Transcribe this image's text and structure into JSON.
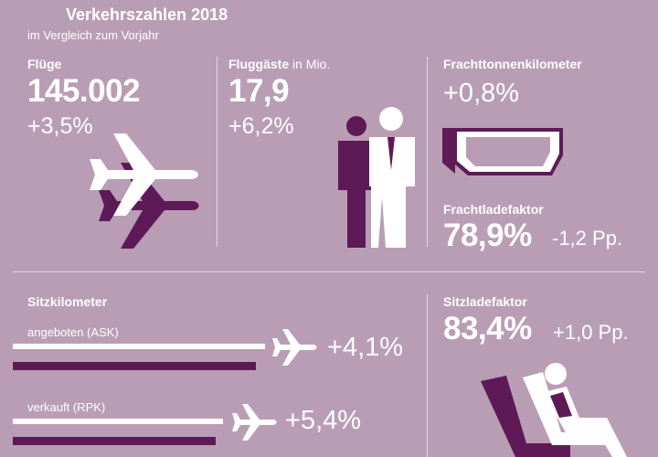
{
  "header": {
    "title": "Verkehrszahlen 2018",
    "subtitle": "im Vergleich zum Vorjahr"
  },
  "fluege": {
    "label": "Flüge",
    "value": "145.002",
    "change": "+3,5%",
    "icon": "airplane-icon"
  },
  "fluggaeste": {
    "label": "Fluggäste",
    "unit": "in Mio.",
    "value": "17,9",
    "change": "+6,2%",
    "icon": "passengers-icon"
  },
  "fracht": {
    "label": "Frachttonnenkilometer",
    "change": "+0,8%",
    "icon": "cargo-container-icon",
    "ladefaktor_label": "Frachtladefaktor",
    "ladefaktor_value": "78,9%",
    "ladefaktor_change": "-1,2 Pp."
  },
  "sitzkilometer": {
    "label": "Sitzkilometer",
    "rows": [
      {
        "label": "angeboten (ASK)",
        "change": "+4,1%"
      },
      {
        "label": "verkauft (RPK)",
        "change": "+5,4%"
      }
    ]
  },
  "sitzladefaktor": {
    "label": "Sitzladefaktor",
    "value": "83,4%",
    "change": "+1,0 Pp.",
    "icon": "seated-passenger-icon"
  },
  "colors": {
    "background": "#b99db5",
    "accent_dark": "#5e1a57",
    "text": "#ffffff"
  }
}
